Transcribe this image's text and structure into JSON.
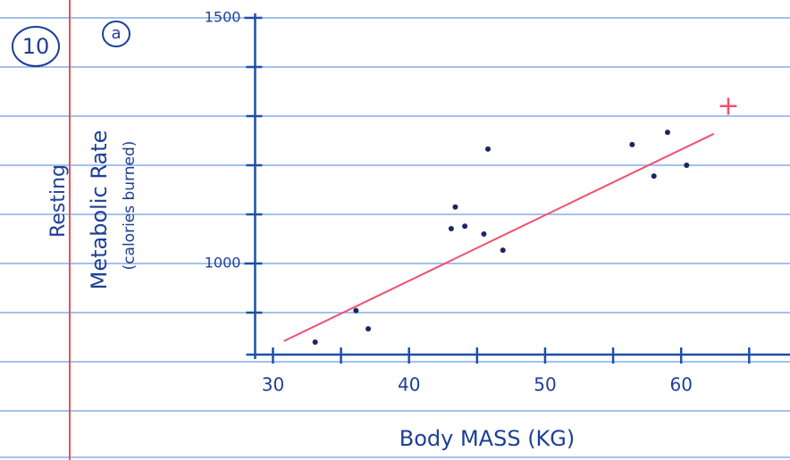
{
  "chart_data": {
    "type": "scatter",
    "annotations": [
      "10",
      "a"
    ],
    "ylabel_lines": [
      "Resting",
      "Metabolic Rate",
      "(calories burned)"
    ],
    "xlabel": "Body MASS (KG)",
    "x": [
      33.1,
      36.1,
      37.0,
      43.4,
      43.1,
      44.1,
      45.5,
      46.9,
      45.8,
      56.4,
      59.0,
      58.0,
      60.4
    ],
    "y": [
      840,
      904,
      867,
      1115,
      1071,
      1076,
      1060,
      1027,
      1233,
      1242,
      1267,
      1178,
      1200
    ],
    "color": "#1b2663",
    "fit_line": {
      "x": [
        30.8,
        62.4
      ],
      "y": [
        842,
        1264
      ],
      "color": "#f2506e"
    },
    "xlim": [
      28,
      68
    ],
    "xticks": [
      30,
      40,
      50,
      60
    ],
    "minor_xticks": [
      35,
      45,
      55,
      65
    ],
    "ylim": [
      800,
      1500
    ],
    "yticks": [
      1000,
      1500
    ],
    "minor_yticks": [
      900,
      1100,
      1200,
      1300,
      1400
    ],
    "axis_color": "#1e4fa8"
  }
}
